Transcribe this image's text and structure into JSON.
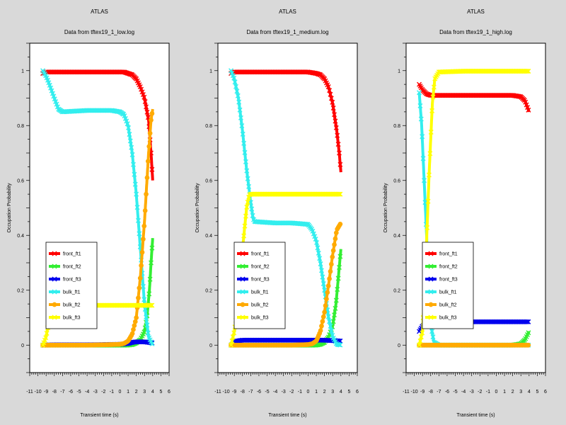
{
  "chart_data": [
    {
      "type": "line",
      "title": "ATLAS",
      "subtitle": "Data from tftex19_1_low.log",
      "xlabel": "Transient time (s)",
      "ylabel": "Occupation Probability",
      "xlim": [
        -11,
        6
      ],
      "ylim": [
        -0.1,
        1.1
      ],
      "x_ticks": [
        -11,
        -10,
        -9,
        -8,
        -7,
        -6,
        -5,
        -4,
        -3,
        -2,
        -1,
        0,
        1,
        2,
        3,
        4,
        5,
        6
      ],
      "y_ticks": [
        0,
        0.2,
        0.4,
        0.6,
        0.8,
        1
      ],
      "legend_position": "bottom-left",
      "series": [
        {
          "name": "front_ft1",
          "color": "#ff0000",
          "marker": "x",
          "points": [
            [
              -9.4,
              0.99
            ],
            [
              -9,
              0.995
            ],
            [
              -7,
              0.995
            ],
            [
              -4,
              0.995
            ],
            [
              -1,
              0.995
            ],
            [
              0.5,
              0.995
            ],
            [
              1,
              0.99
            ],
            [
              1.5,
              0.985
            ],
            [
              2,
              0.97
            ],
            [
              2.5,
              0.94
            ],
            [
              3,
              0.9
            ],
            [
              3.5,
              0.82
            ],
            [
              3.8,
              0.7
            ],
            [
              4,
              0.6
            ]
          ]
        },
        {
          "name": "front_ft2",
          "color": "#33ee33",
          "marker": "x",
          "points": [
            [
              -9.4,
              0
            ],
            [
              -8,
              0
            ],
            [
              -4,
              0
            ],
            [
              0,
              0
            ],
            [
              1,
              0
            ],
            [
              1.5,
              0.002
            ],
            [
              2,
              0.008
            ],
            [
              2.5,
              0.02
            ],
            [
              3,
              0.05
            ],
            [
              3.3,
              0.1
            ],
            [
              3.6,
              0.2
            ],
            [
              3.8,
              0.3
            ],
            [
              4,
              0.39
            ]
          ]
        },
        {
          "name": "front_ft3",
          "color": "#0000ee",
          "marker": "x",
          "points": [
            [
              -9.4,
              0
            ],
            [
              -8,
              0.001
            ],
            [
              -4,
              0.001
            ],
            [
              0,
              0.003
            ],
            [
              1,
              0.006
            ],
            [
              1.5,
              0.01
            ],
            [
              2,
              0.012
            ],
            [
              3,
              0.012
            ],
            [
              3.5,
              0.01
            ],
            [
              4,
              0.008
            ]
          ]
        },
        {
          "name": "bulk_ft1",
          "color": "#33eeee",
          "marker": "x",
          "points": [
            [
              -9.4,
              1
            ],
            [
              -9,
              0.98
            ],
            [
              -8.6,
              0.95
            ],
            [
              -8,
              0.9
            ],
            [
              -7.5,
              0.86
            ],
            [
              -7,
              0.85
            ],
            [
              -4,
              0.855
            ],
            [
              -1,
              0.855
            ],
            [
              0,
              0.85
            ],
            [
              0.5,
              0.84
            ],
            [
              1,
              0.8
            ],
            [
              1.5,
              0.7
            ],
            [
              2,
              0.55
            ],
            [
              2.5,
              0.35
            ],
            [
              3,
              0.15
            ],
            [
              3.5,
              0.03
            ],
            [
              4,
              0
            ]
          ]
        },
        {
          "name": "bulk_ft2",
          "color": "#ffaa00",
          "marker": "o",
          "points": [
            [
              -9.4,
              0
            ],
            [
              -8,
              0
            ],
            [
              -4,
              0
            ],
            [
              -1,
              0.002
            ],
            [
              0,
              0.003
            ],
            [
              0.5,
              0.006
            ],
            [
              1,
              0.015
            ],
            [
              1.5,
              0.04
            ],
            [
              2,
              0.1
            ],
            [
              2.5,
              0.25
            ],
            [
              3,
              0.45
            ],
            [
              3.5,
              0.7
            ],
            [
              3.8,
              0.82
            ],
            [
              4,
              0.86
            ]
          ]
        },
        {
          "name": "bulk_ft3",
          "color": "#ffff00",
          "marker": "x",
          "points": [
            [
              -9.4,
              0
            ],
            [
              -9,
              0.03
            ],
            [
              -8.7,
              0.08
            ],
            [
              -8.5,
              0.13
            ],
            [
              -8.3,
              0.14
            ],
            [
              -8,
              0.145
            ],
            [
              -4,
              0.145
            ],
            [
              0,
              0.145
            ],
            [
              2,
              0.145
            ],
            [
              4,
              0.145
            ]
          ]
        }
      ]
    },
    {
      "type": "line",
      "title": "ATLAS",
      "subtitle": "Data from tftex19_1_medium.log",
      "xlabel": "Transient time (s)",
      "ylabel": "Occupation Probability",
      "xlim": [
        -11,
        6
      ],
      "ylim": [
        -0.1,
        1.1
      ],
      "x_ticks": [
        -11,
        -10,
        -9,
        -8,
        -7,
        -6,
        -5,
        -4,
        -3,
        -2,
        -1,
        0,
        1,
        2,
        3,
        4,
        5,
        6
      ],
      "y_ticks": [
        0,
        0.2,
        0.4,
        0.6,
        0.8,
        1
      ],
      "legend_position": "bottom-left",
      "series": [
        {
          "name": "front_ft1",
          "color": "#ff0000",
          "marker": "x",
          "points": [
            [
              -9.4,
              0.99
            ],
            [
              -9,
              0.995
            ],
            [
              -6,
              0.995
            ],
            [
              -2,
              0.995
            ],
            [
              0,
              0.995
            ],
            [
              1,
              0.99
            ],
            [
              1.5,
              0.985
            ],
            [
              2,
              0.97
            ],
            [
              2.5,
              0.94
            ],
            [
              3,
              0.88
            ],
            [
              3.5,
              0.78
            ],
            [
              3.8,
              0.7
            ],
            [
              4,
              0.63
            ]
          ]
        },
        {
          "name": "front_ft2",
          "color": "#33ee33",
          "marker": "x",
          "points": [
            [
              -9.4,
              0
            ],
            [
              -6,
              0
            ],
            [
              0,
              0
            ],
            [
              1,
              0
            ],
            [
              1.5,
              0.003
            ],
            [
              2,
              0.01
            ],
            [
              2.5,
              0.03
            ],
            [
              3,
              0.07
            ],
            [
              3.4,
              0.15
            ],
            [
              3.7,
              0.25
            ],
            [
              4,
              0.35
            ]
          ]
        },
        {
          "name": "front_ft3",
          "color": "#0000ee",
          "marker": "x",
          "points": [
            [
              -9.4,
              0
            ],
            [
              -9,
              0.01
            ],
            [
              -8.7,
              0.015
            ],
            [
              -8,
              0.018
            ],
            [
              -4,
              0.018
            ],
            [
              0,
              0.018
            ],
            [
              2,
              0.018
            ],
            [
              4,
              0.015
            ]
          ]
        },
        {
          "name": "bulk_ft1",
          "color": "#33eeee",
          "marker": "x",
          "points": [
            [
              -9.4,
              1
            ],
            [
              -9,
              0.97
            ],
            [
              -8.5,
              0.9
            ],
            [
              -8,
              0.78
            ],
            [
              -7.5,
              0.64
            ],
            [
              -7,
              0.52
            ],
            [
              -6.7,
              0.46
            ],
            [
              -6.5,
              0.45
            ],
            [
              -4,
              0.445
            ],
            [
              -2,
              0.445
            ],
            [
              0,
              0.44
            ],
            [
              0.5,
              0.42
            ],
            [
              1,
              0.38
            ],
            [
              1.5,
              0.3
            ],
            [
              2,
              0.2
            ],
            [
              2.5,
              0.1
            ],
            [
              3,
              0.03
            ],
            [
              3.5,
              0.003
            ],
            [
              4,
              0
            ]
          ]
        },
        {
          "name": "bulk_ft2",
          "color": "#ffaa00",
          "marker": "o",
          "points": [
            [
              -9.4,
              0
            ],
            [
              -6,
              0
            ],
            [
              -2,
              0
            ],
            [
              0,
              0.002
            ],
            [
              0.5,
              0.005
            ],
            [
              1,
              0.015
            ],
            [
              1.5,
              0.05
            ],
            [
              2,
              0.12
            ],
            [
              2.5,
              0.22
            ],
            [
              3,
              0.33
            ],
            [
              3.5,
              0.42
            ],
            [
              4,
              0.445
            ]
          ]
        },
        {
          "name": "bulk_ft3",
          "color": "#ffff00",
          "marker": "x",
          "points": [
            [
              -9.4,
              0
            ],
            [
              -9,
              0.05
            ],
            [
              -8.5,
              0.15
            ],
            [
              -8,
              0.35
            ],
            [
              -7.5,
              0.5
            ],
            [
              -7.2,
              0.545
            ],
            [
              -7,
              0.55
            ],
            [
              -4,
              0.55
            ],
            [
              0,
              0.55
            ],
            [
              2,
              0.55
            ],
            [
              4,
              0.55
            ]
          ]
        }
      ]
    },
    {
      "type": "line",
      "title": "ATLAS",
      "subtitle": "Data from tftex19_1_high.log",
      "xlabel": "Transient time (s)",
      "ylabel": "Occupation Probability",
      "xlim": [
        -11,
        6
      ],
      "ylim": [
        -0.1,
        1.1
      ],
      "x_ticks": [
        -11,
        -10,
        -9,
        -8,
        -7,
        -6,
        -5,
        -4,
        -3,
        -2,
        -1,
        0,
        1,
        2,
        3,
        4,
        5,
        6
      ],
      "y_ticks": [
        0,
        0.2,
        0.4,
        0.6,
        0.8,
        1
      ],
      "legend_position": "bottom-left",
      "series": [
        {
          "name": "front_ft1",
          "color": "#ff0000",
          "marker": "x",
          "points": [
            [
              -9.4,
              0.95
            ],
            [
              -9,
              0.93
            ],
            [
              -8.5,
              0.915
            ],
            [
              -8,
              0.91
            ],
            [
              -4,
              0.91
            ],
            [
              0,
              0.91
            ],
            [
              2,
              0.91
            ],
            [
              3,
              0.905
            ],
            [
              3.5,
              0.89
            ],
            [
              4,
              0.85
            ]
          ]
        },
        {
          "name": "front_ft2",
          "color": "#33ee33",
          "marker": "x",
          "points": [
            [
              -9.4,
              0
            ],
            [
              -6,
              0
            ],
            [
              0,
              0
            ],
            [
              2,
              0
            ],
            [
              3,
              0.005
            ],
            [
              3.5,
              0.02
            ],
            [
              4,
              0.05
            ]
          ]
        },
        {
          "name": "front_ft3",
          "color": "#0000ee",
          "marker": "x",
          "points": [
            [
              -9.4,
              0.05
            ],
            [
              -9,
              0.07
            ],
            [
              -8.5,
              0.08
            ],
            [
              -8,
              0.085
            ],
            [
              -4,
              0.085
            ],
            [
              0,
              0.085
            ],
            [
              2,
              0.085
            ],
            [
              4,
              0.085
            ]
          ]
        },
        {
          "name": "bulk_ft1",
          "color": "#33eeee",
          "marker": "x",
          "points": [
            [
              -9.4,
              0.92
            ],
            [
              -9.1,
              0.8
            ],
            [
              -8.8,
              0.6
            ],
            [
              -8.5,
              0.4
            ],
            [
              -8.2,
              0.2
            ],
            [
              -7.9,
              0.06
            ],
            [
              -7.6,
              0.01
            ],
            [
              -7,
              0
            ],
            [
              -4,
              0
            ],
            [
              0,
              0
            ],
            [
              4,
              0
            ]
          ]
        },
        {
          "name": "bulk_ft2",
          "color": "#ffaa00",
          "marker": "o",
          "points": [
            [
              -9.4,
              0
            ],
            [
              -6,
              0
            ],
            [
              0,
              0
            ],
            [
              2,
              0
            ],
            [
              4,
              0
            ]
          ]
        },
        {
          "name": "bulk_ft3",
          "color": "#ffff00",
          "marker": "x",
          "points": [
            [
              -9.4,
              0
            ],
            [
              -9,
              0.05
            ],
            [
              -8.6,
              0.3
            ],
            [
              -8.2,
              0.62
            ],
            [
              -7.8,
              0.88
            ],
            [
              -7.5,
              0.97
            ],
            [
              -7,
              0.995
            ],
            [
              -4,
              0.998
            ],
            [
              0,
              0.998
            ],
            [
              2,
              0.998
            ],
            [
              4,
              0.998
            ]
          ]
        }
      ]
    }
  ]
}
